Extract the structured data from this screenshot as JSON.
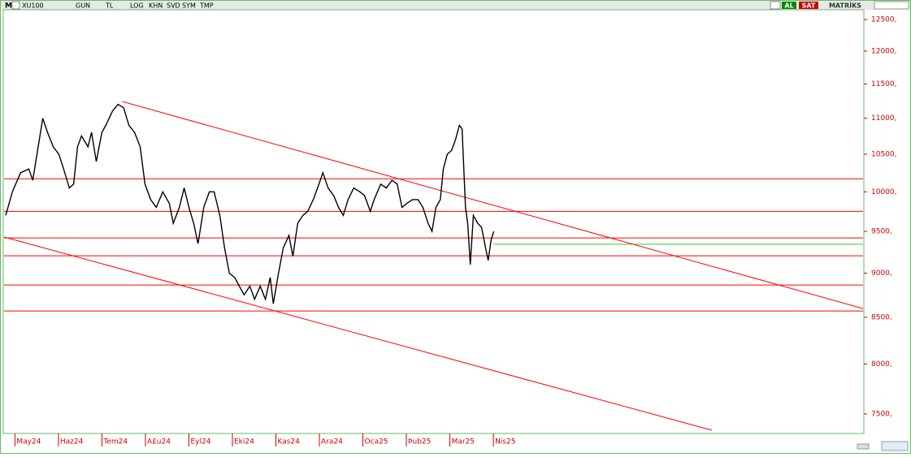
{
  "toolbar": {
    "symbol": "XU100",
    "buttons": [
      "GUN",
      "TL",
      "LOG",
      "KHN",
      "SVD",
      "SYM",
      "TMP"
    ],
    "buy": "AL",
    "sell": "SAT",
    "brand": "MATRİKS"
  },
  "chart_data": {
    "type": "line",
    "log_scale": true,
    "ylim": [
      7320,
      12660
    ],
    "yticks": [
      {
        "value": 12500,
        "label": "12500,"
      },
      {
        "value": 12000,
        "label": "12000,"
      },
      {
        "value": 11500,
        "label": "11500,"
      },
      {
        "value": 11000,
        "label": "11000,"
      },
      {
        "value": 10500,
        "label": "10500,"
      },
      {
        "value": 10000,
        "label": "10000,"
      },
      {
        "value": 9500,
        "label": "9500,"
      },
      {
        "value": 9000,
        "label": "9000,"
      },
      {
        "value": 8500,
        "label": "8500,"
      },
      {
        "value": 8000,
        "label": "8000,"
      },
      {
        "value": 7500,
        "label": "7500,"
      }
    ],
    "xlim": [
      -0.25,
      19.5
    ],
    "xticks": [
      {
        "value": 0,
        "label": "May24"
      },
      {
        "value": 1,
        "label": "Haz24"
      },
      {
        "value": 2,
        "label": "Tem24"
      },
      {
        "value": 3,
        "label": "A£u24"
      },
      {
        "value": 4,
        "label": "Eyl24"
      },
      {
        "value": 5,
        "label": "Eki24"
      },
      {
        "value": 6,
        "label": "Kas24"
      },
      {
        "value": 7,
        "label": "Ara24"
      },
      {
        "value": 8,
        "label": "Oca25"
      },
      {
        "value": 9,
        "label": "Þub25"
      },
      {
        "value": 10,
        "label": "Mar25"
      },
      {
        "value": 11,
        "label": "Nis25"
      }
    ],
    "series": [
      {
        "color": "#000000",
        "x": [
          -0.21,
          -0.06,
          0.13,
          0.32,
          0.41,
          0.56,
          0.64,
          0.75,
          0.88,
          1.01,
          1.12,
          1.25,
          1.35,
          1.44,
          1.53,
          1.68,
          1.76,
          1.87,
          2.0,
          2.09,
          2.24,
          2.37,
          2.5,
          2.62,
          2.75,
          2.88,
          2.99,
          3.12,
          3.25,
          3.4,
          3.55,
          3.64,
          3.78,
          3.89,
          4.0,
          4.11,
          4.21,
          4.34,
          4.47,
          4.58,
          4.71,
          4.82,
          4.93,
          5.05,
          5.16,
          5.27,
          5.4,
          5.51,
          5.64,
          5.76,
          5.87,
          5.94,
          6.06,
          6.17,
          6.3,
          6.39,
          6.5,
          6.62,
          6.73,
          6.86,
          6.99,
          7.08,
          7.2,
          7.33,
          7.44,
          7.55,
          7.66,
          7.79,
          7.93,
          8.04,
          8.17,
          8.26,
          8.41,
          8.54,
          8.67,
          8.79,
          8.9,
          9.01,
          9.14,
          9.27,
          9.38,
          9.5,
          9.59,
          9.68,
          9.78,
          9.85,
          9.94,
          10.04,
          10.13,
          10.22,
          10.28,
          10.36,
          10.41,
          10.47,
          10.54,
          10.64,
          10.73,
          10.82,
          10.88,
          10.95,
          11.01
        ],
        "values": [
          9700,
          10000,
          10250,
          10300,
          10150,
          10700,
          11000,
          10800,
          10600,
          10500,
          10300,
          10050,
          10100,
          10600,
          10750,
          10600,
          10800,
          10400,
          10800,
          10900,
          11100,
          11200,
          11150,
          10900,
          10800,
          10600,
          10100,
          9900,
          9800,
          10000,
          9850,
          9600,
          9800,
          10050,
          9800,
          9600,
          9350,
          9800,
          10000,
          10000,
          9700,
          9300,
          9000,
          8950,
          8850,
          8750,
          8850,
          8700,
          8850,
          8700,
          8950,
          8650,
          9000,
          9300,
          9450,
          9200,
          9600,
          9700,
          9750,
          9900,
          10100,
          10250,
          10050,
          9950,
          9800,
          9700,
          9900,
          10050,
          10000,
          9950,
          9750,
          9900,
          10100,
          10050,
          10150,
          10100,
          9800,
          9850,
          9900,
          9900,
          9800,
          9600,
          9500,
          9800,
          9900,
          10300,
          10500,
          10550,
          10700,
          10900,
          10850,
          9800,
          9600,
          9100,
          9700,
          9600,
          9550,
          9300,
          9150,
          9400,
          9500
        ]
      }
    ],
    "levels": {
      "color": "#ff0000",
      "values": [
        10170,
        9750,
        9420,
        9205,
        8863,
        8570
      ]
    },
    "current_level": {
      "color": "#33cc33",
      "x": [
        11.01,
        19.5
      ],
      "values": [
        9343,
        9343
      ]
    },
    "trendlines": [
      {
        "color": "#ff0000",
        "x": [
          2.47,
          19.5
        ],
        "values": [
          11240,
          8597
        ]
      },
      {
        "color": "#ff0000",
        "x": [
          -0.24,
          16.02
        ],
        "values": [
          9430,
          7343
        ]
      }
    ]
  }
}
